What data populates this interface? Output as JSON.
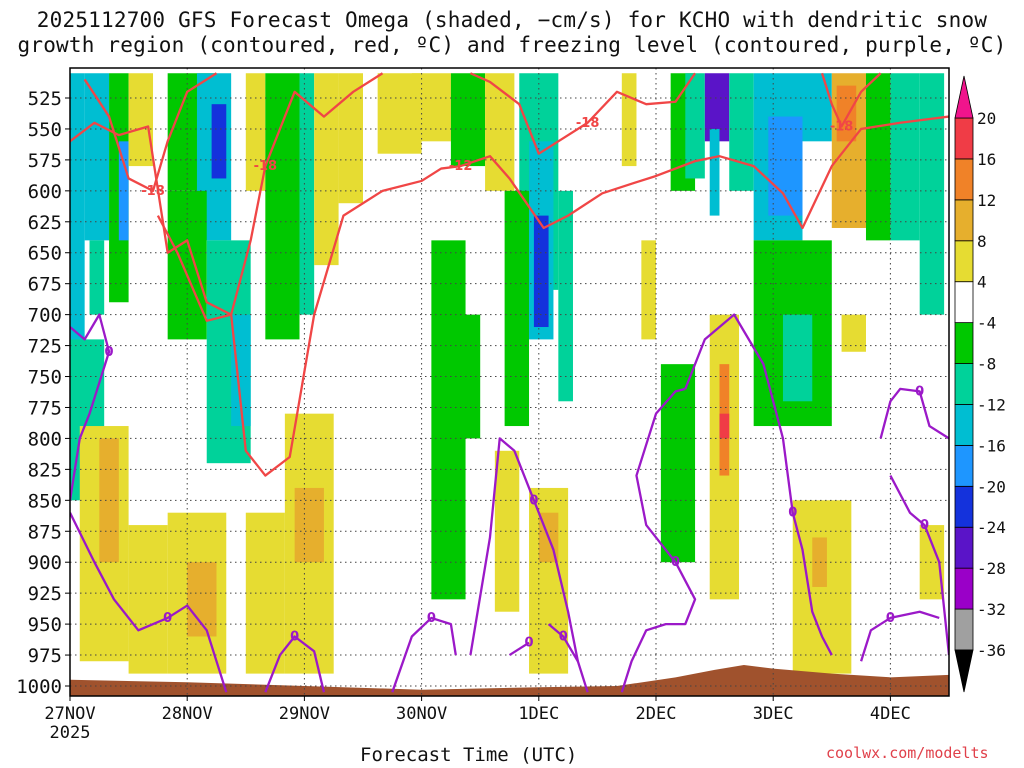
{
  "title_line1": "2025112700 GFS Forecast Omega (shaded, −cm/s) for KCHO with dendritic snow",
  "title_line2": "growth region (contoured, red, ºC) and freezing level (contoured, purple, ºC)",
  "credit": "coolwx.com/modelts",
  "chart_data": {
    "type": "heatmap",
    "title": "2025112700 GFS Forecast Omega (shaded, −cm/s) for KCHO with dendritic snow growth region (contoured, red, ºC) and freezing level (contoured, purple, ºC)",
    "xlabel": "Forecast Time (UTC)",
    "ylabel": "",
    "x_range_hours": [
      0,
      180
    ],
    "x_ticks": [
      {
        "hour": 0,
        "label": "27NOV",
        "sublabel": "2025"
      },
      {
        "hour": 24,
        "label": "28NOV"
      },
      {
        "hour": 48,
        "label": "29NOV"
      },
      {
        "hour": 72,
        "label": "30NOV"
      },
      {
        "hour": 96,
        "label": "1DEC"
      },
      {
        "hour": 120,
        "label": "2DEC"
      },
      {
        "hour": 144,
        "label": "3DEC"
      },
      {
        "hour": 168,
        "label": "4DEC"
      }
    ],
    "y_range_hpa": [
      500,
      1010
    ],
    "y_ticks": [
      525,
      550,
      575,
      600,
      625,
      650,
      675,
      700,
      725,
      750,
      775,
      800,
      825,
      850,
      875,
      900,
      925,
      950,
      975,
      1000
    ],
    "grid": true,
    "colorbar": {
      "levels": [
        -36,
        -32,
        -28,
        -24,
        -20,
        -16,
        -12,
        -8,
        -4,
        4,
        8,
        12,
        16,
        20
      ],
      "colors": [
        "#000000",
        "#a0a0a0",
        "#9a00c8",
        "#5a14c8",
        "#1432dc",
        "#1e96ff",
        "#00bed2",
        "#00d29a",
        "#00c800",
        "#ffffff",
        "#e6dc32",
        "#e6af2d",
        "#f08228",
        "#f03c46",
        "#f0148c"
      ]
    },
    "omega_cells": [
      {
        "t0": 0,
        "t1": 3,
        "p0": 505,
        "p1": 760,
        "v": -14
      },
      {
        "t0": 3,
        "t1": 8,
        "p0": 505,
        "p1": 640,
        "v": -14
      },
      {
        "t0": 4,
        "t1": 7,
        "p0": 640,
        "p1": 700,
        "v": -10
      },
      {
        "t0": 8,
        "t1": 12,
        "p0": 505,
        "p1": 690,
        "v": -6
      },
      {
        "t0": 10,
        "t1": 12,
        "p0": 560,
        "p1": 640,
        "v": -18
      },
      {
        "t0": 0,
        "t1": 7,
        "p0": 720,
        "p1": 850,
        "v": -10
      },
      {
        "t0": 12,
        "t1": 17,
        "p0": 505,
        "p1": 580,
        "v": 6
      },
      {
        "t0": 20,
        "t1": 30,
        "p0": 505,
        "p1": 600,
        "v": -6
      },
      {
        "t0": 26,
        "t1": 33,
        "p0": 505,
        "p1": 640,
        "v": -14
      },
      {
        "t0": 29,
        "t1": 32,
        "p0": 530,
        "p1": 590,
        "v": -22
      },
      {
        "t0": 20,
        "t1": 28,
        "p0": 600,
        "p1": 720,
        "v": -6
      },
      {
        "t0": 28,
        "t1": 37,
        "p0": 640,
        "p1": 820,
        "v": -10
      },
      {
        "t0": 33,
        "t1": 37,
        "p0": 700,
        "p1": 790,
        "v": -14
      },
      {
        "t0": 36,
        "t1": 40,
        "p0": 505,
        "p1": 600,
        "v": 6
      },
      {
        "t0": 40,
        "t1": 47,
        "p0": 505,
        "p1": 720,
        "v": -6
      },
      {
        "t0": 47,
        "t1": 50,
        "p0": 505,
        "p1": 700,
        "v": -10
      },
      {
        "t0": 50,
        "t1": 55,
        "p0": 505,
        "p1": 660,
        "v": 6
      },
      {
        "t0": 55,
        "t1": 60,
        "p0": 505,
        "p1": 610,
        "v": 6
      },
      {
        "t0": 63,
        "t1": 72,
        "p0": 505,
        "p1": 570,
        "v": 6
      },
      {
        "t0": 70,
        "t1": 78,
        "p0": 505,
        "p1": 560,
        "v": 6
      },
      {
        "t0": 78,
        "t1": 85,
        "p0": 505,
        "p1": 580,
        "v": -6
      },
      {
        "t0": 85,
        "t1": 91,
        "p0": 505,
        "p1": 600,
        "v": 6
      },
      {
        "t0": 92,
        "t1": 100,
        "p0": 505,
        "p1": 680,
        "v": -10
      },
      {
        "t0": 94,
        "t1": 99,
        "p0": 560,
        "p1": 720,
        "v": -16
      },
      {
        "t0": 95,
        "t1": 98,
        "p0": 620,
        "p1": 710,
        "v": -22
      },
      {
        "t0": 89,
        "t1": 94,
        "p0": 600,
        "p1": 790,
        "v": -6
      },
      {
        "t0": 100,
        "t1": 103,
        "p0": 600,
        "p1": 770,
        "v": -10
      },
      {
        "t0": 74,
        "t1": 81,
        "p0": 640,
        "p1": 930,
        "v": -6
      },
      {
        "t0": 80,
        "t1": 84,
        "p0": 700,
        "p1": 800,
        "v": -6
      },
      {
        "t0": 113,
        "t1": 116,
        "p0": 505,
        "p1": 580,
        "v": 6
      },
      {
        "t0": 123,
        "t1": 128,
        "p0": 505,
        "p1": 600,
        "v": -6
      },
      {
        "t0": 126,
        "t1": 130,
        "p0": 505,
        "p1": 590,
        "v": -12
      },
      {
        "t0": 130,
        "t1": 135,
        "p0": 505,
        "p1": 560,
        "v": -26
      },
      {
        "t0": 131,
        "t1": 133,
        "p0": 550,
        "p1": 620,
        "v": -16
      },
      {
        "t0": 135,
        "t1": 140,
        "p0": 505,
        "p1": 600,
        "v": -12
      },
      {
        "t0": 140,
        "t1": 150,
        "p0": 505,
        "p1": 640,
        "v": -14
      },
      {
        "t0": 143,
        "t1": 150,
        "p0": 540,
        "p1": 620,
        "v": -18
      },
      {
        "t0": 150,
        "t1": 156,
        "p0": 505,
        "p1": 560,
        "v": -14
      },
      {
        "t0": 156,
        "t1": 163,
        "p0": 505,
        "p1": 630,
        "v": 10
      },
      {
        "t0": 157,
        "t1": 161,
        "p0": 515,
        "p1": 560,
        "v": 12
      },
      {
        "t0": 163,
        "t1": 168,
        "p0": 505,
        "p1": 640,
        "v": -6
      },
      {
        "t0": 168,
        "t1": 174,
        "p0": 505,
        "p1": 640,
        "v": -10
      },
      {
        "t0": 174,
        "t1": 179,
        "p0": 505,
        "p1": 700,
        "v": -10
      },
      {
        "t0": 140,
        "t1": 156,
        "p0": 640,
        "p1": 790,
        "v": -6
      },
      {
        "t0": 146,
        "t1": 152,
        "p0": 700,
        "p1": 770,
        "v": -12
      },
      {
        "t0": 121,
        "t1": 128,
        "p0": 740,
        "p1": 900,
        "v": -6
      },
      {
        "t0": 117,
        "t1": 120,
        "p0": 640,
        "p1": 720,
        "v": 6
      },
      {
        "t0": 131,
        "t1": 137,
        "p0": 700,
        "p1": 930,
        "v": 6
      },
      {
        "t0": 133,
        "t1": 135,
        "p0": 740,
        "p1": 830,
        "v": 14
      },
      {
        "t0": 133,
        "t1": 135,
        "p0": 780,
        "p1": 800,
        "v": 18
      },
      {
        "t0": 158,
        "t1": 163,
        "p0": 700,
        "p1": 730,
        "v": 6
      },
      {
        "t0": 2,
        "t1": 12,
        "p0": 790,
        "p1": 980,
        "v": 6
      },
      {
        "t0": 6,
        "t1": 10,
        "p0": 800,
        "p1": 900,
        "v": 10
      },
      {
        "t0": 12,
        "t1": 20,
        "p0": 870,
        "p1": 990,
        "v": 6
      },
      {
        "t0": 20,
        "t1": 32,
        "p0": 860,
        "p1": 990,
        "v": 6
      },
      {
        "t0": 24,
        "t1": 30,
        "p0": 900,
        "p1": 960,
        "v": 10
      },
      {
        "t0": 36,
        "t1": 44,
        "p0": 860,
        "p1": 990,
        "v": 6
      },
      {
        "t0": 44,
        "t1": 54,
        "p0": 780,
        "p1": 990,
        "v": 6
      },
      {
        "t0": 46,
        "t1": 52,
        "p0": 840,
        "p1": 900,
        "v": 10
      },
      {
        "t0": 87,
        "t1": 92,
        "p0": 810,
        "p1": 940,
        "v": 6
      },
      {
        "t0": 94,
        "t1": 102,
        "p0": 840,
        "p1": 990,
        "v": 6
      },
      {
        "t0": 96,
        "t1": 100,
        "p0": 860,
        "p1": 900,
        "v": 10
      },
      {
        "t0": 148,
        "t1": 160,
        "p0": 850,
        "p1": 990,
        "v": 6
      },
      {
        "t0": 152,
        "t1": 155,
        "p0": 880,
        "p1": 920,
        "v": 10
      },
      {
        "t0": 174,
        "t1": 179,
        "p0": 870,
        "p1": 930,
        "v": 6
      }
    ],
    "dendritic_contours_red": [
      {
        "label": "-12",
        "points": [
          [
            0,
            560
          ],
          [
            5,
            545
          ],
          [
            10,
            555
          ],
          [
            16,
            548
          ],
          [
            20,
            650
          ],
          [
            24,
            640
          ],
          [
            28,
            690
          ],
          [
            33,
            700
          ],
          [
            36,
            810
          ],
          [
            40,
            830
          ],
          [
            45,
            815
          ],
          [
            50,
            700
          ],
          [
            56,
            620
          ],
          [
            64,
            600
          ],
          [
            72,
            592
          ],
          [
            76,
            582
          ],
          [
            80,
            580
          ],
          [
            86,
            572
          ],
          [
            90,
            590
          ],
          [
            97,
            630
          ],
          [
            102,
            620
          ],
          [
            109,
            602
          ],
          [
            116,
            593
          ],
          [
            120,
            588
          ],
          [
            128,
            576
          ],
          [
            133,
            572
          ],
          [
            140,
            580
          ],
          [
            146,
            602
          ],
          [
            150,
            630
          ],
          [
            156,
            580
          ],
          [
            162,
            550
          ],
          [
            170,
            545
          ],
          [
            180,
            540
          ]
        ]
      },
      {
        "label": "-18",
        "points": [
          [
            3,
            510
          ],
          [
            8,
            540
          ],
          [
            12,
            590
          ],
          [
            17,
            600
          ],
          [
            20,
            560
          ],
          [
            24,
            520
          ],
          [
            30,
            505
          ]
        ]
      },
      {
        "label": "-18",
        "points": [
          [
            18,
            620
          ],
          [
            22,
            650
          ],
          [
            28,
            705
          ],
          [
            33,
            700
          ],
          [
            37,
            640
          ],
          [
            40,
            580
          ],
          [
            46,
            520
          ],
          [
            52,
            540
          ],
          [
            58,
            520
          ],
          [
            64,
            505
          ]
        ]
      },
      {
        "label": "-18",
        "points": [
          [
            82,
            505
          ],
          [
            86,
            512
          ],
          [
            92,
            530
          ],
          [
            96,
            570
          ],
          [
            100,
            560
          ],
          [
            106,
            545
          ],
          [
            112,
            520
          ],
          [
            118,
            530
          ],
          [
            124,
            528
          ],
          [
            128,
            505
          ]
        ]
      },
      {
        "label": "-18",
        "points": [
          [
            154,
            505
          ],
          [
            156,
            530
          ],
          [
            158,
            548
          ],
          [
            162,
            520
          ],
          [
            166,
            505
          ]
        ]
      }
    ],
    "freezing_contours_purple": [
      {
        "label": "0",
        "points": [
          [
            0,
            710
          ],
          [
            3,
            720
          ],
          [
            6,
            700
          ],
          [
            8,
            730
          ],
          [
            4,
            780
          ],
          [
            2,
            800
          ],
          [
            0,
            850
          ]
        ]
      },
      {
        "label": "0",
        "points": [
          [
            0,
            860
          ],
          [
            5,
            900
          ],
          [
            9,
            930
          ],
          [
            14,
            955
          ],
          [
            20,
            945
          ],
          [
            24,
            935
          ],
          [
            28,
            955
          ],
          [
            32,
            1005
          ]
        ]
      },
      {
        "label": "0",
        "points": [
          [
            40,
            1005
          ],
          [
            43,
            975
          ],
          [
            46,
            960
          ],
          [
            50,
            972
          ],
          [
            52,
            1005
          ]
        ]
      },
      {
        "label": "0",
        "points": [
          [
            66,
            1005
          ],
          [
            70,
            960
          ],
          [
            74,
            945
          ],
          [
            78,
            950
          ],
          [
            79,
            975
          ]
        ]
      },
      {
        "label": "0",
        "points": [
          [
            82,
            975
          ],
          [
            86,
            880
          ],
          [
            88,
            800
          ],
          [
            91,
            810
          ],
          [
            95,
            850
          ],
          [
            99,
            890
          ],
          [
            102,
            940
          ],
          [
            104,
            980
          ],
          [
            106,
            1005
          ]
        ]
      },
      {
        "label": "0",
        "points": [
          [
            98,
            950
          ],
          [
            101,
            960
          ],
          [
            104,
            980
          ]
        ]
      },
      {
        "label": "0",
        "points": [
          [
            90,
            975
          ],
          [
            94,
            965
          ]
        ]
      },
      {
        "label": "0",
        "points": [
          [
            113,
            1005
          ],
          [
            115,
            980
          ],
          [
            118,
            955
          ],
          [
            122,
            950
          ],
          [
            126,
            950
          ],
          [
            128,
            930
          ],
          [
            124,
            900
          ],
          [
            118,
            870
          ],
          [
            116,
            830
          ],
          [
            120,
            780
          ],
          [
            124,
            762
          ],
          [
            126,
            760
          ]
        ]
      },
      {
        "label": "0",
        "points": [
          [
            126,
            760
          ],
          [
            130,
            720
          ],
          [
            136,
            700
          ],
          [
            142,
            740
          ],
          [
            146,
            800
          ],
          [
            148,
            860
          ],
          [
            150,
            890
          ],
          [
            152,
            940
          ],
          [
            154,
            960
          ],
          [
            156,
            975
          ]
        ]
      },
      {
        "label": "0",
        "points": [
          [
            162,
            980
          ],
          [
            164,
            955
          ],
          [
            168,
            945
          ],
          [
            174,
            940
          ],
          [
            178,
            945
          ]
        ]
      },
      {
        "label": "0",
        "points": [
          [
            166,
            800
          ],
          [
            168,
            770
          ],
          [
            170,
            760
          ],
          [
            174,
            762
          ],
          [
            176,
            790
          ],
          [
            180,
            800
          ]
        ]
      },
      {
        "label": "0",
        "points": [
          [
            168,
            830
          ],
          [
            172,
            860
          ],
          [
            175,
            870
          ],
          [
            178,
            900
          ],
          [
            180,
            975
          ]
        ]
      }
    ],
    "terrain_color": "#a0522d"
  }
}
